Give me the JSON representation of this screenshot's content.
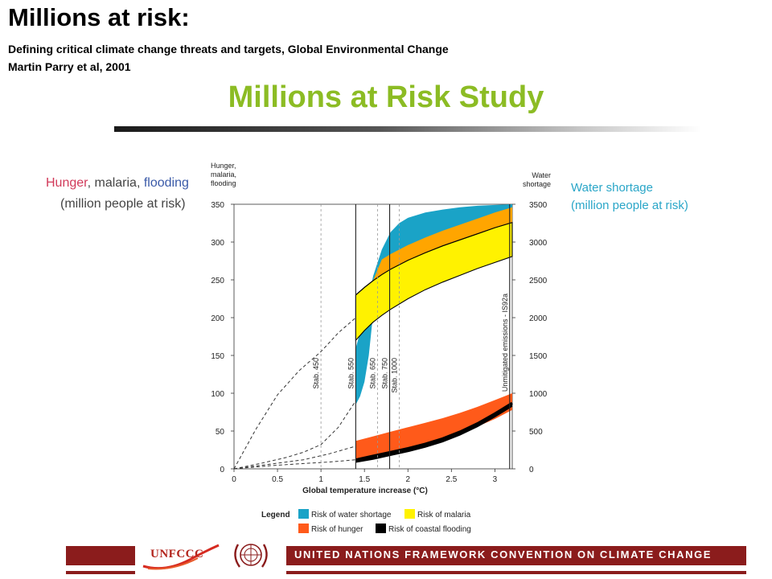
{
  "slide": {
    "title": "Millions at risk:",
    "citation_line1": "Defining critical climate change threats and targets, Global Environmental Change",
    "citation_line2": "Martin Parry et al, 2001",
    "study_title": "Millions at Risk Study"
  },
  "annotations": {
    "left_word_hunger": "Hunger",
    "left_sep1": ", ",
    "left_word_malaria": "malaria",
    "left_sep2": ", ",
    "left_word_flooding": "flooding",
    "left_line2": "(million people at risk)",
    "right_line1": "Water shortage",
    "right_line2": "(million people at risk)"
  },
  "colors": {
    "study_title": "#8cbc24",
    "hunger": "#d13a5a",
    "malaria": "#444444",
    "flooding": "#3a5aa8",
    "water_text": "#2aa6c8",
    "water_band": "#1aa3c7",
    "malaria_band": "#fff200",
    "orange_band": "#ffa500",
    "hunger_band": "#ff5a1a",
    "flood_band": "#000000",
    "footer": "#8b1c1c"
  },
  "chart_data": {
    "type": "area",
    "x_label": "Global temperature increase (°C)",
    "left_axis_label": [
      "Hunger,",
      "malaria,",
      "flooding"
    ],
    "right_axis_label": [
      "Water",
      "shortage"
    ],
    "xlim": [
      0,
      3.2
    ],
    "ylim_left": [
      0,
      350
    ],
    "ylim_right": [
      0,
      3500
    ],
    "x_ticks": [
      0,
      0.5,
      1,
      1.5,
      2,
      2.5,
      3
    ],
    "x_tick_labels": [
      "0",
      "0.5",
      "1",
      "1.5",
      "2",
      "2.5",
      "3"
    ],
    "y_left_ticks": [
      0,
      50,
      100,
      150,
      200,
      250,
      300,
      350
    ],
    "y_right_ticks": [
      0,
      500,
      1000,
      1500,
      2000,
      2500,
      3000,
      3500
    ],
    "grid": false,
    "series": [
      {
        "name": "Risk of water shortage",
        "axis": "right",
        "x": [
          1.4,
          1.45,
          1.5,
          1.55,
          1.6,
          1.7,
          1.8,
          1.9,
          2.0,
          2.2,
          2.4,
          2.6,
          2.8,
          3.0,
          3.2
        ],
        "upper": [
          1600,
          1800,
          2000,
          2250,
          2550,
          2900,
          3130,
          3250,
          3320,
          3390,
          3430,
          3460,
          3480,
          3490,
          3500
        ],
        "lower": [
          850,
          960,
          1150,
          1500,
          2050,
          2560,
          2700,
          2790,
          2860,
          2990,
          3080,
          3150,
          3220,
          3290,
          3360
        ]
      },
      {
        "name": "Risk of malaria",
        "axis": "left",
        "x": [
          1.4,
          1.5,
          1.6,
          1.7,
          1.8,
          2.0,
          2.2,
          2.4,
          2.6,
          2.8,
          3.0,
          3.2
        ],
        "upper": [
          230,
          240,
          249,
          257,
          264,
          276,
          286,
          295,
          303,
          311,
          319,
          326
        ],
        "lower": [
          170,
          183,
          194,
          203,
          211,
          225,
          237,
          247,
          256,
          265,
          273,
          281
        ]
      },
      {
        "name": "Risk of hunger",
        "axis": "left",
        "x": [
          1.4,
          1.6,
          1.8,
          2.0,
          2.2,
          2.4,
          2.6,
          2.8,
          3.0,
          3.2
        ],
        "upper": [
          37,
          43,
          49,
          55,
          61,
          67,
          74,
          82,
          91,
          100
        ],
        "lower": [
          13,
          18,
          23,
          28,
          34,
          40,
          47,
          56,
          66,
          78
        ]
      },
      {
        "name": "Risk of coastal flooding",
        "axis": "left",
        "x": [
          1.4,
          1.6,
          1.8,
          2.0,
          2.2,
          2.4,
          2.6,
          2.8,
          3.0,
          3.2
        ],
        "upper": [
          12,
          17,
          22,
          27,
          33,
          40,
          49,
          60,
          73,
          87
        ],
        "lower": [
          8,
          12,
          17,
          22,
          28,
          35,
          44,
          55,
          68,
          82
        ]
      }
    ],
    "dashed_curves": [
      {
        "x": [
          0,
          0.25,
          0.5,
          0.75,
          1.0,
          1.2,
          1.4
        ],
        "y": [
          0,
          52,
          98,
          130,
          155,
          180,
          200
        ]
      },
      {
        "x": [
          0,
          0.3,
          0.6,
          0.8,
          1.0,
          1.2,
          1.4
        ],
        "y": [
          0,
          7,
          15,
          22,
          32,
          55,
          90
        ]
      },
      {
        "x": [
          0,
          0.4,
          0.8,
          1.1,
          1.4
        ],
        "y": [
          0,
          6,
          12,
          20,
          30
        ]
      },
      {
        "x": [
          0,
          0.4,
          0.8,
          1.1,
          1.4
        ],
        "y": [
          0,
          4,
          7,
          9,
          12
        ]
      }
    ],
    "vlines": [
      {
        "x": 1.0,
        "label": "Stab. 450",
        "style": "dashed"
      },
      {
        "x": 1.4,
        "label": "Stab. 550",
        "style": "solid"
      },
      {
        "x": 1.65,
        "label": "Stab. 650",
        "style": "dashed"
      },
      {
        "x": 1.79,
        "label": "Stab. 750",
        "style": "solid"
      },
      {
        "x": 1.9,
        "label": "Stab. 1000",
        "style": "dashed"
      },
      {
        "x": 3.17,
        "label": "Unmitigated emissions - IS92a",
        "style": "solid"
      }
    ],
    "legend": {
      "title": "Legend",
      "entries": [
        {
          "label": "Risk of water shortage",
          "color": "#1aa3c7"
        },
        {
          "label": "Risk of malaria",
          "color": "#fff200"
        },
        {
          "label": "Risk of hunger",
          "color": "#ff5a1a"
        },
        {
          "label": "Risk of coastal flooding",
          "color": "#000000"
        }
      ]
    }
  },
  "footer": {
    "logo_text": "UNFCCC",
    "text": "UNITED NATIONS FRAMEWORK CONVENTION ON CLIMATE CHANGE"
  }
}
